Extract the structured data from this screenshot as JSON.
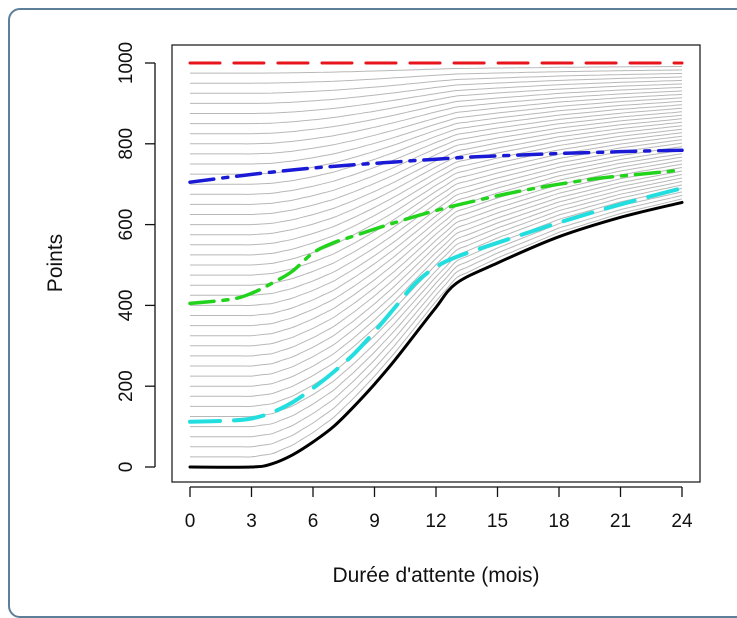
{
  "chart_data": {
    "type": "line",
    "title": "",
    "xlabel": "Durée d'attente (mois)",
    "ylabel": "Points",
    "xlim": [
      -1,
      25
    ],
    "ylim": [
      -30,
      1040
    ],
    "x_ticks": [
      0,
      3,
      6,
      9,
      12,
      15,
      18,
      21,
      24
    ],
    "y_ticks": [
      0,
      200,
      400,
      600,
      800,
      1000
    ],
    "grid": false,
    "legend": "none",
    "series": [
      {
        "style": "dash",
        "color": "#e8141c",
        "width": 3,
        "points": [
          [
            0,
            1000
          ],
          [
            24,
            1000
          ]
        ]
      },
      {
        "style": "dashdot",
        "color": "#1a1ad6",
        "width": 3.5,
        "points": [
          [
            0,
            705
          ],
          [
            2,
            718
          ],
          [
            4,
            730
          ],
          [
            6,
            740
          ],
          [
            8,
            748
          ],
          [
            10,
            755
          ],
          [
            12,
            762
          ],
          [
            14,
            768
          ],
          [
            16,
            772
          ],
          [
            18,
            776
          ],
          [
            20,
            779
          ],
          [
            22,
            782
          ],
          [
            24,
            784
          ]
        ]
      },
      {
        "style": "dashdot",
        "color": "#22d31c",
        "width": 3.5,
        "points": [
          [
            0,
            405
          ],
          [
            2,
            415
          ],
          [
            3,
            430
          ],
          [
            4,
            455
          ],
          [
            5,
            485
          ],
          [
            6,
            530
          ],
          [
            7,
            555
          ],
          [
            8,
            572
          ],
          [
            10,
            605
          ],
          [
            12,
            635
          ],
          [
            14,
            660
          ],
          [
            16,
            682
          ],
          [
            18,
            700
          ],
          [
            20,
            715
          ],
          [
            22,
            725
          ],
          [
            24,
            735
          ]
        ]
      },
      {
        "style": "dash",
        "color": "#22dede",
        "width": 4,
        "points": [
          [
            0,
            112
          ],
          [
            2,
            115
          ],
          [
            3,
            120
          ],
          [
            4,
            135
          ],
          [
            5,
            160
          ],
          [
            6,
            195
          ],
          [
            7,
            235
          ],
          [
            8,
            280
          ],
          [
            9,
            335
          ],
          [
            10,
            395
          ],
          [
            11,
            455
          ],
          [
            12,
            495
          ],
          [
            13,
            520
          ],
          [
            15,
            555
          ],
          [
            18,
            605
          ],
          [
            21,
            650
          ],
          [
            24,
            690
          ]
        ]
      },
      {
        "style": "solid",
        "color": "#000000",
        "width": 3,
        "points": [
          [
            0,
            0
          ],
          [
            3,
            0
          ],
          [
            4,
            8
          ],
          [
            5,
            30
          ],
          [
            6,
            62
          ],
          [
            7,
            100
          ],
          [
            8,
            150
          ],
          [
            9,
            205
          ],
          [
            10,
            265
          ],
          [
            11,
            330
          ],
          [
            12,
            395
          ],
          [
            13,
            455
          ],
          [
            15,
            505
          ],
          [
            18,
            570
          ],
          [
            21,
            618
          ],
          [
            24,
            655
          ]
        ]
      }
    ],
    "background_curves": {
      "color": "#b8b8b8",
      "note": "family of thin grey curves between the black bottom curve and the 1000 line",
      "count": 40
    }
  }
}
